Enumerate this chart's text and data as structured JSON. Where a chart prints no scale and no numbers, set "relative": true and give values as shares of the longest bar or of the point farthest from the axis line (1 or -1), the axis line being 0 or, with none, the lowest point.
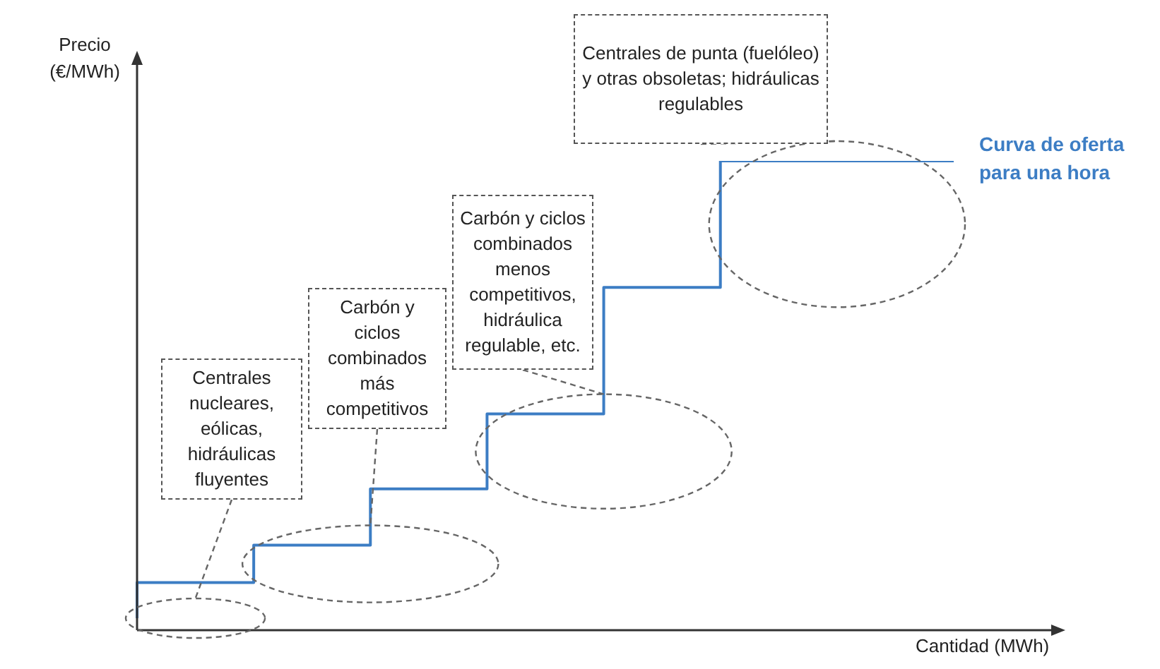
{
  "chart_data": {
    "type": "step",
    "relative": true,
    "marker": "none",
    "ylabel": "Precio (€/MWh)",
    "xlabel": "Cantidad (MWh)",
    "categories": [
      null,
      null,
      null,
      null,
      null,
      null,
      null,
      null
    ],
    "series": [
      {
        "name": "Curva de oferta para una hora",
        "color": "#3c7dc4",
        "values": [
          0.024,
          0.1,
          0.18,
          0.3,
          0.46,
          0.73,
          1,
          1
        ]
      }
    ],
    "annotations": [
      "Centrales nucleares, eólicas, hidráulicas fluyentes",
      "Carbón y ciclos combinados más competitivos",
      "Carbón y ciclos combinados menos competitivos, hidráulica regulable, etc.",
      "Centrales de punta (fuelóleo) y otras obsoletas; hidráulicas regulables"
    ]
  }
}
